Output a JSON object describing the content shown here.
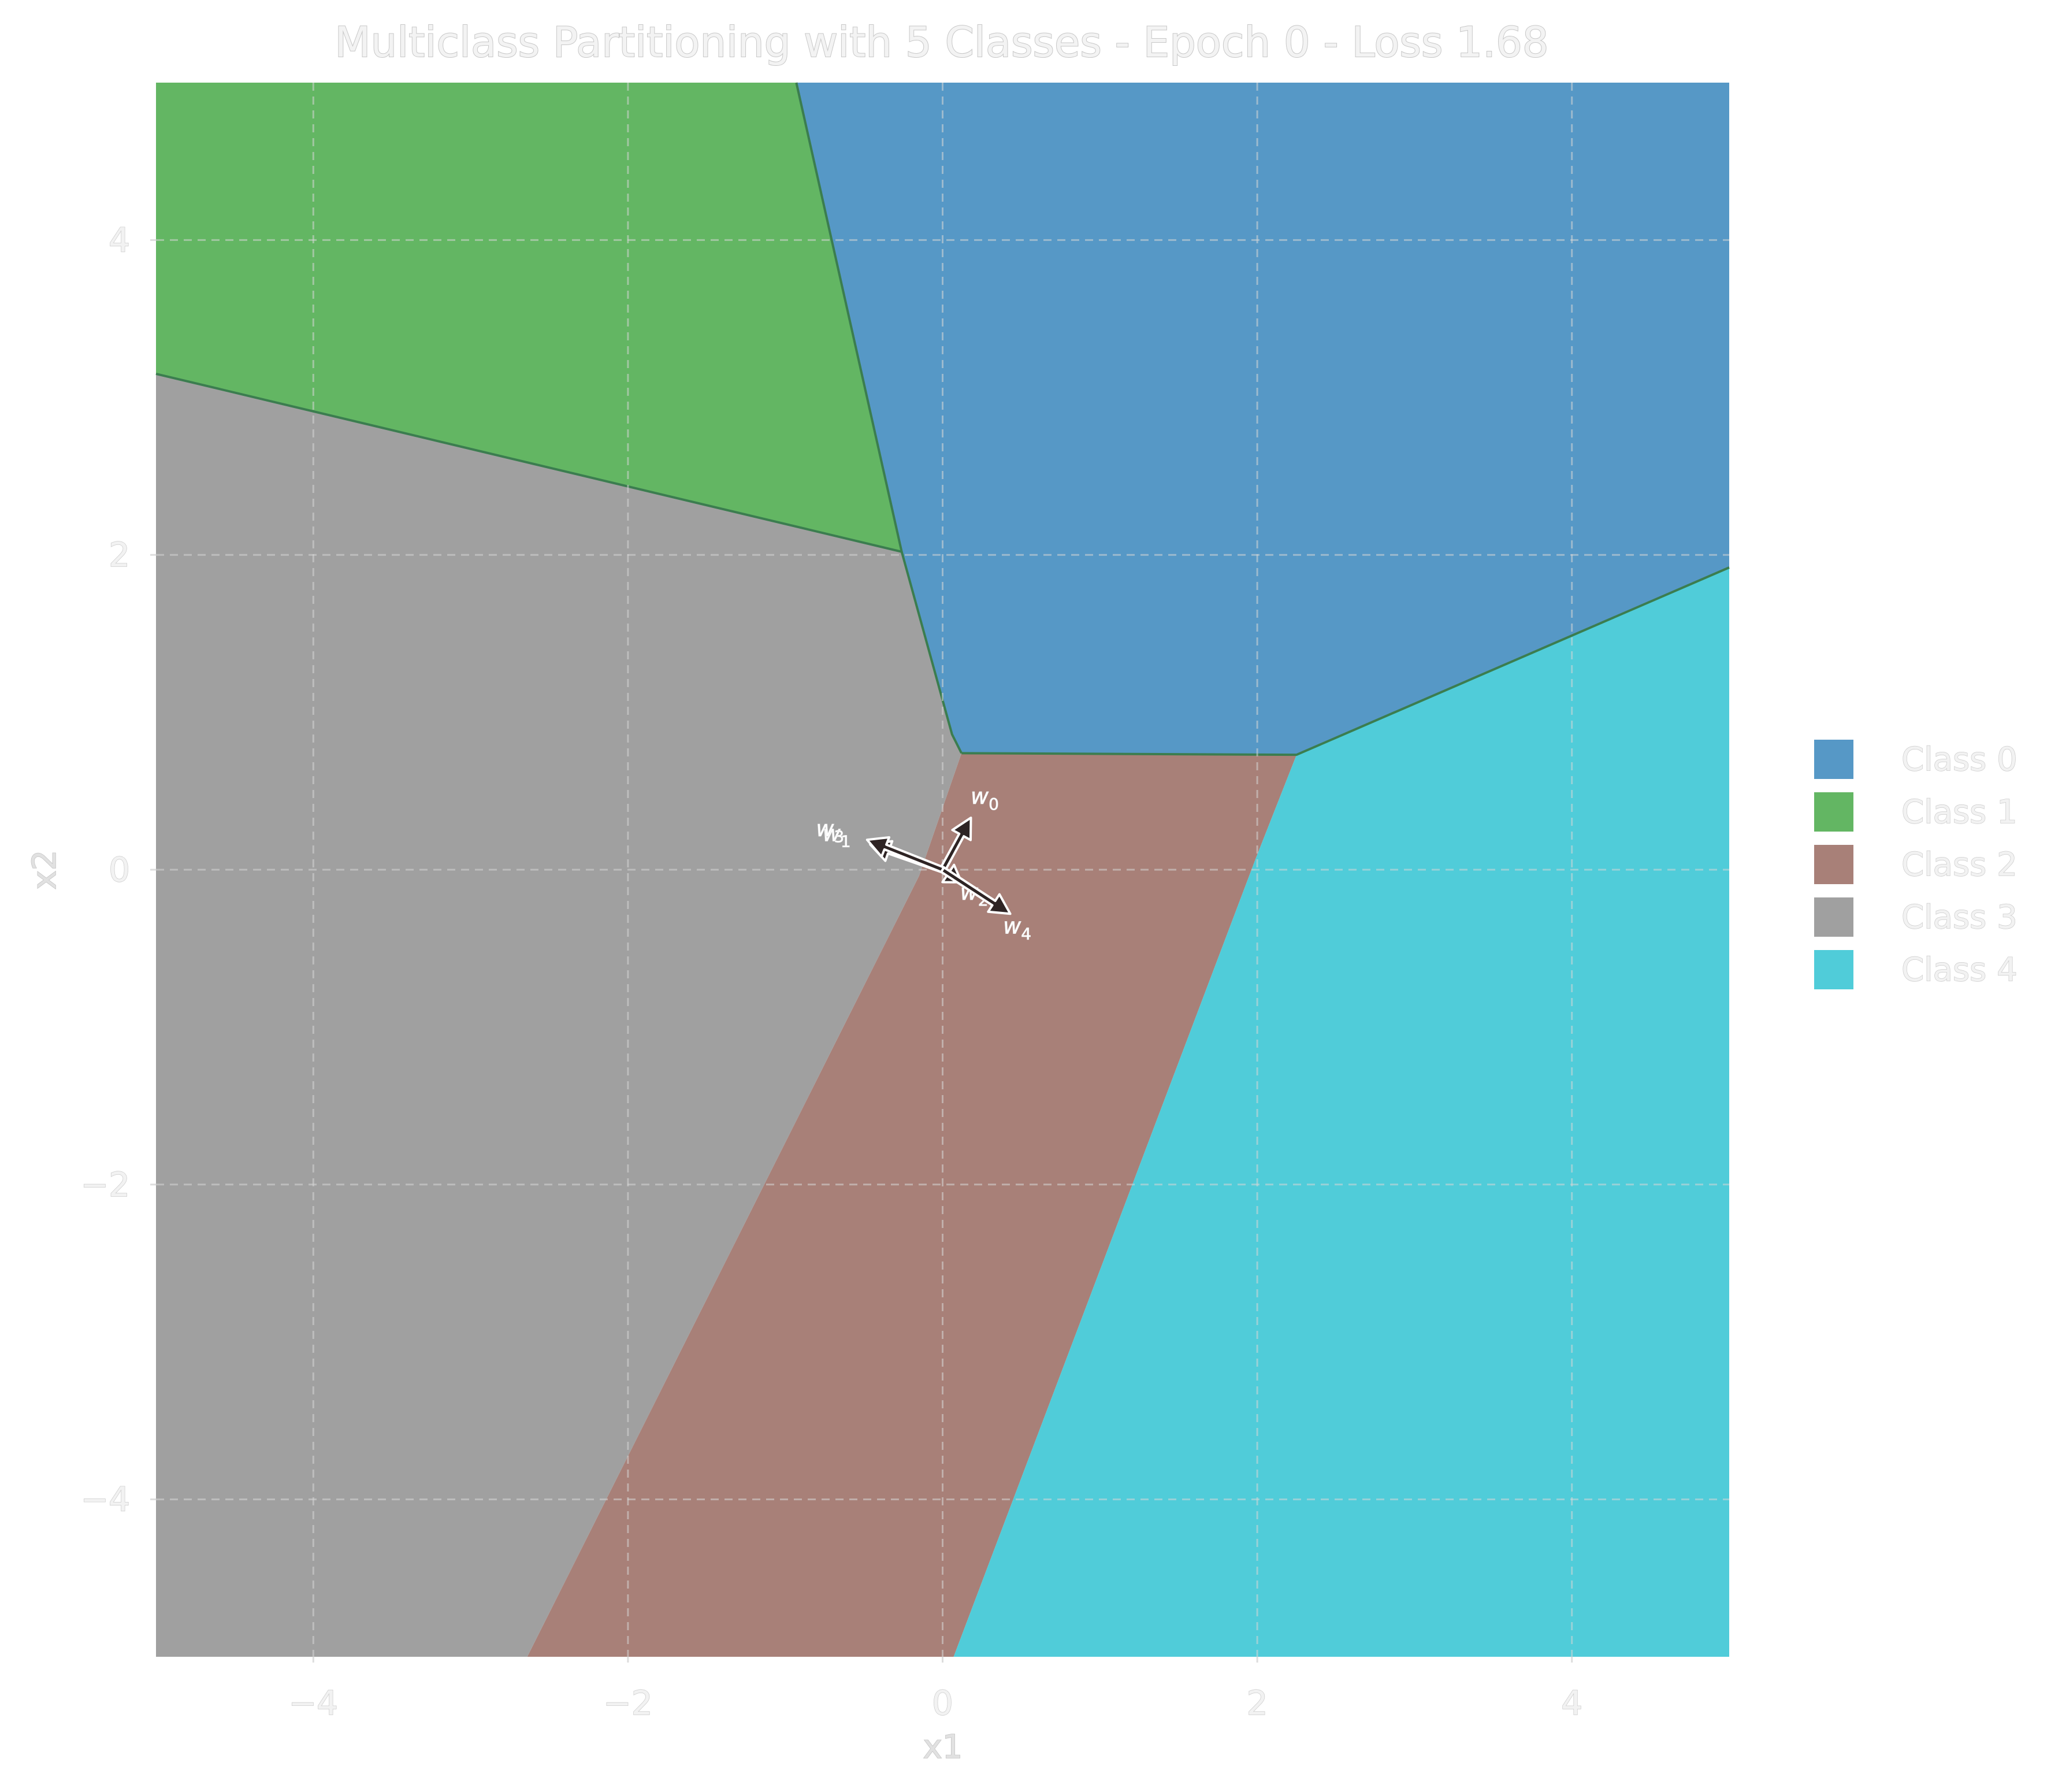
{
  "colors": {
    "class_0": "#5698c6",
    "class_1": "#63b663",
    "class_2": "#a88078",
    "class_3": "#a0a0a0",
    "class_4": "#50ccd9",
    "boundary": "#3b7d4f",
    "grid": "#d6d6d6",
    "background": "#ffffff",
    "text": "#f2f2f2",
    "text_edge": "#c8c8c8",
    "vector_fill": "#2e2424",
    "vector_edge": "#ffffff"
  },
  "chart_data": {
    "type": "heatmap",
    "title": "Multiclass Partitioning with 5 Classes - Epoch 0 - Loss 1.68",
    "xlabel": "x1",
    "ylabel": "x2",
    "xlim": [
      -5,
      5
    ],
    "ylim": [
      -5,
      5
    ],
    "xticks": [
      -4,
      -2,
      0,
      2,
      4
    ],
    "yticks": [
      -4,
      -2,
      0,
      2,
      4
    ],
    "xtick_labels": [
      "−4",
      "−2",
      "0",
      "2",
      "4"
    ],
    "ytick_labels": [
      "−4",
      "−2",
      "0",
      "2",
      "4"
    ],
    "grid": true,
    "legend_position": "right",
    "legend": [
      "Class 0",
      "Class 1",
      "Class 2",
      "Class 3",
      "Class 4"
    ],
    "regions": [
      {
        "class": "Class 0",
        "polygon": [
          [
            -0.93,
            5
          ],
          [
            5,
            5
          ],
          [
            5,
            1.92
          ],
          [
            2.25,
            0.73
          ],
          [
            0.12,
            0.74
          ],
          [
            0.06,
            0.86
          ],
          [
            -0.26,
            2.02
          ]
        ]
      },
      {
        "class": "Class 1",
        "polygon": [
          [
            -5,
            5
          ],
          [
            -0.93,
            5
          ],
          [
            -0.26,
            2.02
          ],
          [
            -5,
            3.15
          ]
        ]
      },
      {
        "class": "Class 2",
        "polygon": [
          [
            0.12,
            0.74
          ],
          [
            2.25,
            0.73
          ],
          [
            1.99,
            0.07
          ],
          [
            0.07,
            -5
          ],
          [
            -2.64,
            -5
          ],
          [
            -0.15,
            -0.04
          ]
        ]
      },
      {
        "class": "Class 3",
        "polygon": [
          [
            -5,
            3.15
          ],
          [
            -0.26,
            2.02
          ],
          [
            0.06,
            0.86
          ],
          [
            0.12,
            0.74
          ],
          [
            -0.15,
            -0.04
          ],
          [
            -2.64,
            -5
          ],
          [
            -5,
            -5
          ]
        ]
      },
      {
        "class": "Class 4",
        "polygon": [
          [
            2.25,
            0.73
          ],
          [
            5,
            1.92
          ],
          [
            5,
            -5
          ],
          [
            0.07,
            -5
          ],
          [
            1.99,
            0.07
          ]
        ]
      }
    ],
    "weight_vectors": [
      {
        "label": "w",
        "subscript": "0",
        "x": 0.18,
        "y": 0.33
      },
      {
        "label": "w",
        "subscript": "1",
        "x": -0.46,
        "y": 0.16
      },
      {
        "label": "w",
        "subscript": "2",
        "x": 0.12,
        "y": -0.08
      },
      {
        "label": "w",
        "subscript": "3",
        "x": -0.48,
        "y": 0.19
      },
      {
        "label": "w",
        "subscript": "4",
        "x": 0.43,
        "y": -0.28
      }
    ]
  }
}
